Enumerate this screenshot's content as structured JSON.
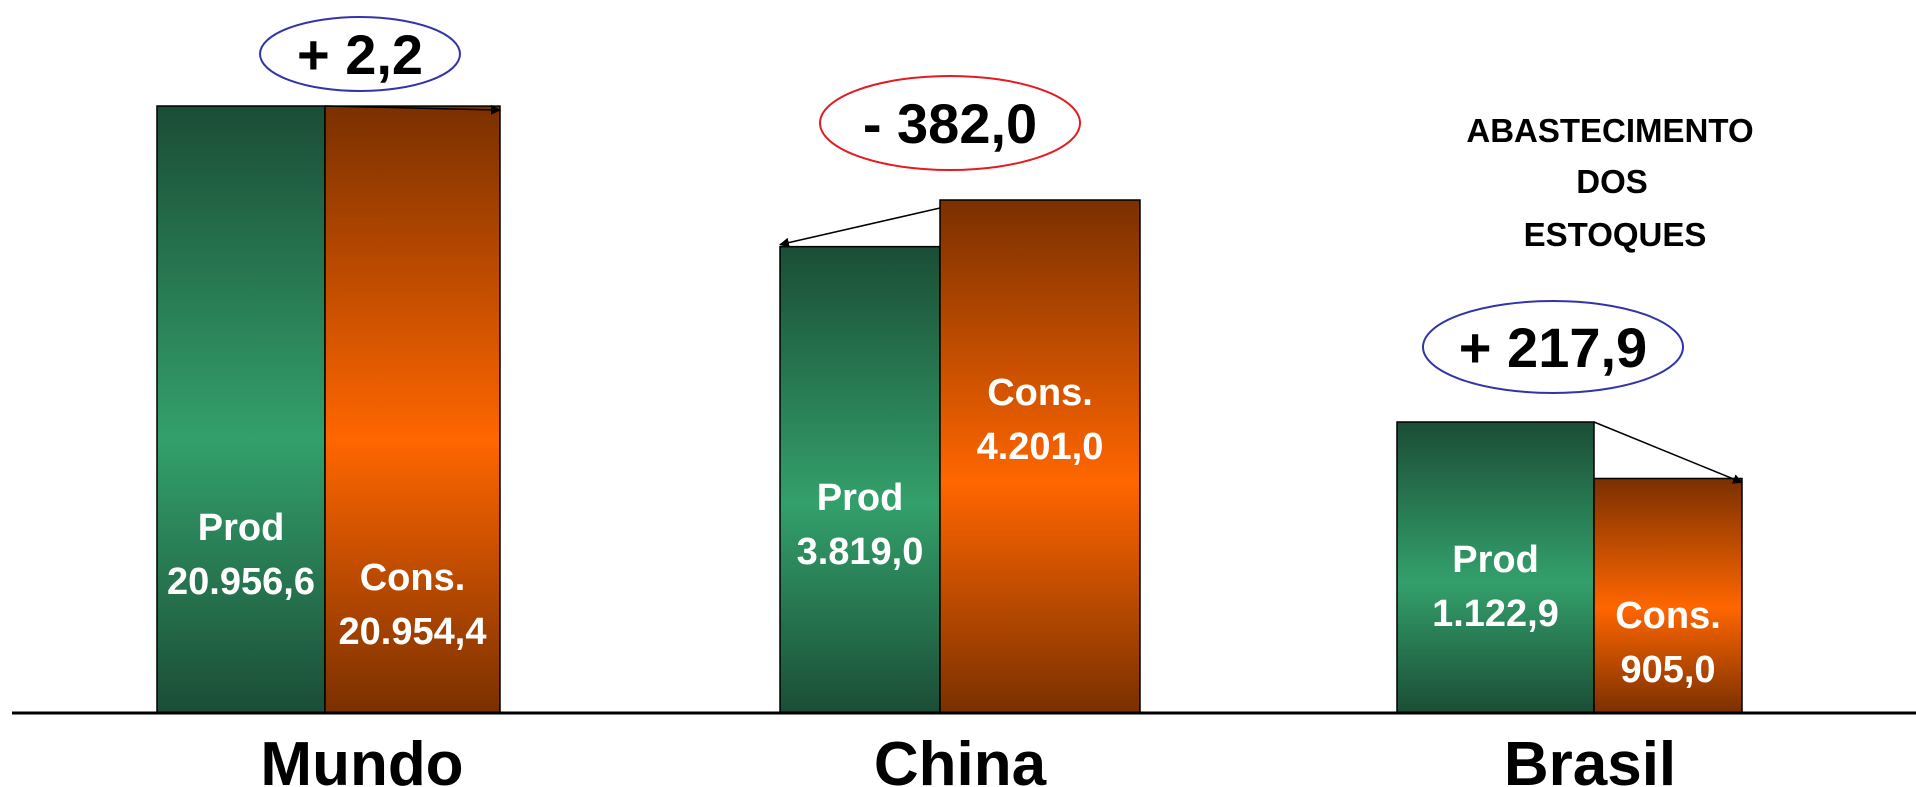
{
  "chart_data": {
    "type": "bar",
    "categories": [
      "Mundo",
      "China",
      "Brasil"
    ],
    "series": [
      {
        "key": "prod",
        "label": "Prod",
        "values": [
          20956.6,
          3819.0,
          1122.9
        ],
        "value_labels": [
          "20.956,6",
          "3.819,0",
          "1.122,9"
        ]
      },
      {
        "key": "cons",
        "label": "Cons.",
        "values": [
          20954.4,
          4201.0,
          905.0
        ],
        "value_labels": [
          "20.954,4",
          "4.201,0",
          "905,0"
        ]
      }
    ],
    "differences": [
      "+ 2,2",
      "- 382,0",
      "+ 217,9"
    ],
    "annotation_lines": [
      "ABASTECIMENTO",
      "DOS",
      "ESTOQUES"
    ],
    "grid": false,
    "legend": "none"
  },
  "colors": {
    "prod_dark": "#1b4d36",
    "prod_light": "#33a06b",
    "cons_dark": "#7a3000",
    "cons_light": "#ff6600",
    "ellipse_positive": "#3333aa",
    "ellipse_negative": "#e31b23",
    "baseline": "#000000"
  }
}
